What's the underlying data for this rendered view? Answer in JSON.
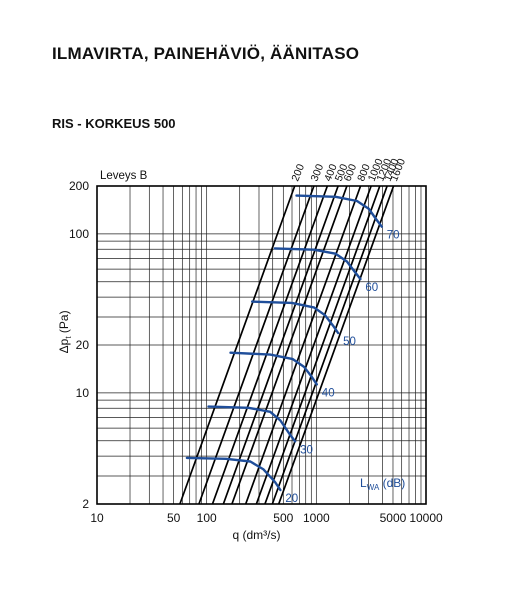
{
  "page": {
    "title": "ILMAVIRTA, PAINEHÄVIÖ, ÄÄNITASO",
    "subtitle": "RIS - KORKEUS 500"
  },
  "chart_data": {
    "type": "line",
    "corner_label": "Leveys B",
    "xlabel": "q (dm³/s)",
    "ylabel": "Δp",
    "ylabel_sub": "t",
    "ylabel_unit": "(Pa)",
    "xscale": "log",
    "yscale": "log",
    "xlim": [
      10,
      10000
    ],
    "ylim": [
      2,
      200
    ],
    "x_ticks": [
      10,
      50,
      100,
      500,
      1000,
      5000,
      10000
    ],
    "x_tick_labels": [
      "10",
      "50",
      "100",
      "500",
      "1000",
      "5000",
      "10000"
    ],
    "y_ticks": [
      2,
      10,
      20,
      100,
      200
    ],
    "y_tick_labels": [
      "2",
      "10",
      "20",
      "100",
      "200"
    ],
    "grid": true,
    "width_series": [
      {
        "name": "200",
        "points": [
          [
            57,
            2
          ],
          [
            635,
            200
          ]
        ]
      },
      {
        "name": "300",
        "points": [
          [
            85,
            2
          ],
          [
            950,
            200
          ]
        ]
      },
      {
        "name": "400",
        "points": [
          [
            113,
            2
          ],
          [
            1260,
            200
          ]
        ]
      },
      {
        "name": "500",
        "points": [
          [
            142,
            2
          ],
          [
            1580,
            200
          ]
        ]
      },
      {
        "name": "600",
        "points": [
          [
            170,
            2
          ],
          [
            1900,
            200
          ]
        ]
      },
      {
        "name": "800",
        "points": [
          [
            227,
            2
          ],
          [
            2530,
            200
          ]
        ]
      },
      {
        "name": "1000",
        "points": [
          [
            284,
            2
          ],
          [
            3160,
            200
          ]
        ]
      },
      {
        "name": "1200",
        "points": [
          [
            340,
            2
          ],
          [
            3790,
            200
          ]
        ]
      },
      {
        "name": "1400",
        "points": [
          [
            397,
            2
          ],
          [
            4420,
            200
          ]
        ]
      },
      {
        "name": "1600",
        "points": [
          [
            454,
            2
          ],
          [
            5060,
            200
          ]
        ]
      }
    ],
    "sound_series_label": "L",
    "sound_series_label_sub": "WA",
    "sound_series_unit": "(dB)",
    "sound_color": "#1f4e9a",
    "sound_series": [
      {
        "name": "20",
        "points": [
          [
            66,
            3.9
          ],
          [
            150,
            3.85
          ],
          [
            250,
            3.7
          ],
          [
            330,
            3.3
          ],
          [
            420,
            2.75
          ],
          [
            470,
            2.45
          ]
        ]
      },
      {
        "name": "30",
        "points": [
          [
            104,
            8.2
          ],
          [
            240,
            8.05
          ],
          [
            380,
            7.6
          ],
          [
            470,
            6.7
          ],
          [
            570,
            5.5
          ],
          [
            640,
            4.95
          ]
        ]
      },
      {
        "name": "40",
        "points": [
          [
            165,
            17.9
          ],
          [
            380,
            17.4
          ],
          [
            610,
            16.3
          ],
          [
            770,
            14.6
          ],
          [
            910,
            12.6
          ],
          [
            1010,
            11.3
          ]
        ]
      },
      {
        "name": "50",
        "points": [
          [
            260,
            37.5
          ],
          [
            600,
            36.8
          ],
          [
            950,
            34.5
          ],
          [
            1200,
            30.8
          ],
          [
            1420,
            26.5
          ],
          [
            1580,
            23.8
          ]
        ]
      },
      {
        "name": "60",
        "points": [
          [
            418,
            81
          ],
          [
            950,
            79.5
          ],
          [
            1500,
            75
          ],
          [
            1900,
            67
          ],
          [
            2250,
            57.5
          ],
          [
            2520,
            52
          ]
        ]
      },
      {
        "name": "70",
        "points": [
          [
            660,
            174
          ],
          [
            1500,
            171
          ],
          [
            2350,
            161
          ],
          [
            3000,
            144
          ],
          [
            3500,
            124
          ],
          [
            3950,
            111
          ]
        ]
      }
    ]
  }
}
